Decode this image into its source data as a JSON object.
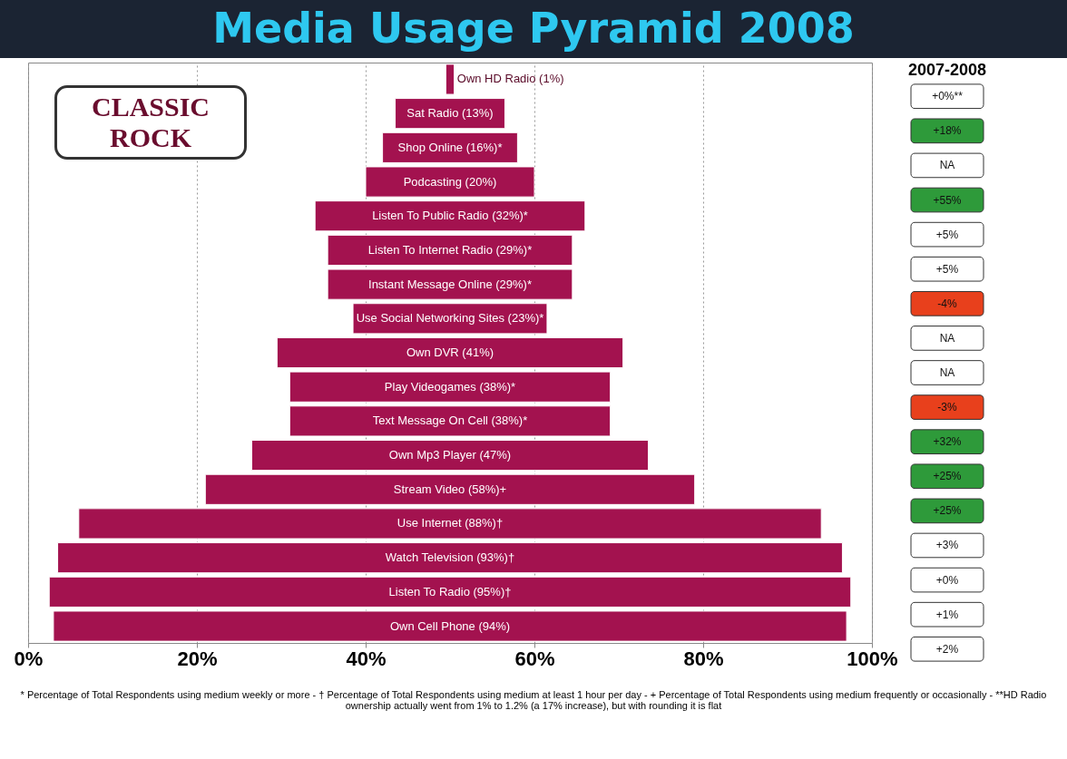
{
  "chart_data": [
    {
      "type": "bar",
      "orientation": "horizontal",
      "title": "Media Usage Pyramid 2008",
      "categories": [
        "Own HD Radio (1%)",
        "Sat Radio (13%)",
        "Shop Online (16%)*",
        "Podcasting (20%)",
        "Listen To Public Radio (32%)*",
        "Listen To Internet Radio (29%)*",
        "Instant Message Online (29%)*",
        "Use Social Networking Sites (23%)*",
        "Own DVR (41%)",
        "Play Videogames (38%)*",
        "Text Message On Cell (38%)*",
        "Own Mp3 Player (47%)",
        "Stream Video (58%)+",
        "Use Internet (88%)†",
        "Watch Television (93%)†",
        "Listen To Radio (95%)†",
        "Own Cell Phone (94%)"
      ],
      "values": [
        1,
        13,
        16,
        20,
        32,
        29,
        29,
        23,
        41,
        38,
        38,
        47,
        58,
        88,
        93,
        95,
        94
      ],
      "base": [
        49.5,
        43.5,
        42,
        40,
        34,
        35.5,
        35.5,
        38.5,
        29.5,
        31,
        31,
        26.5,
        21,
        6,
        3.5,
        2.5,
        3
      ],
      "color": "#a3124f",
      "xlim": [
        0,
        100
      ],
      "xticks": [
        {
          "value": 0,
          "label": "0%"
        },
        {
          "value": 20,
          "label": "20%"
        },
        {
          "value": 40,
          "label": "40%"
        },
        {
          "value": 60,
          "label": "60%"
        },
        {
          "value": 80,
          "label": "80%"
        },
        {
          "value": 100,
          "label": "100%"
        }
      ],
      "grid": "x",
      "annotations": [
        "CLASSIC ROCK",
        "* Percentage of Total Respondents using medium weekly or more - † Percentage of Total Respondents using medium at least 1 hour per day - + Percentage of Total Respondents using medium frequently or occasionally - **HD Radio ownership actually went from 1% to 1.2% (a 17% increase), but with rounding it is flat"
      ]
    },
    {
      "type": "other",
      "title": "2007-2008",
      "categories": [
        "+0%**",
        "+18%",
        "NA",
        "+55%",
        "+5%",
        "+5%",
        "-4%",
        "NA",
        "NA",
        "-3%",
        "+32%",
        "+25%",
        "+25%",
        "+3%",
        "+0%",
        "+1%",
        "+2%"
      ],
      "colors": [
        "#ffffff",
        "#2e9a3a",
        "#ffffff",
        "#2e9a3a",
        "#ffffff",
        "#ffffff",
        "#e8401c",
        "#ffffff",
        "#ffffff",
        "#e8401c",
        "#2e9a3a",
        "#2e9a3a",
        "#2e9a3a",
        "#ffffff",
        "#ffffff",
        "#ffffff",
        "#ffffff"
      ]
    }
  ]
}
